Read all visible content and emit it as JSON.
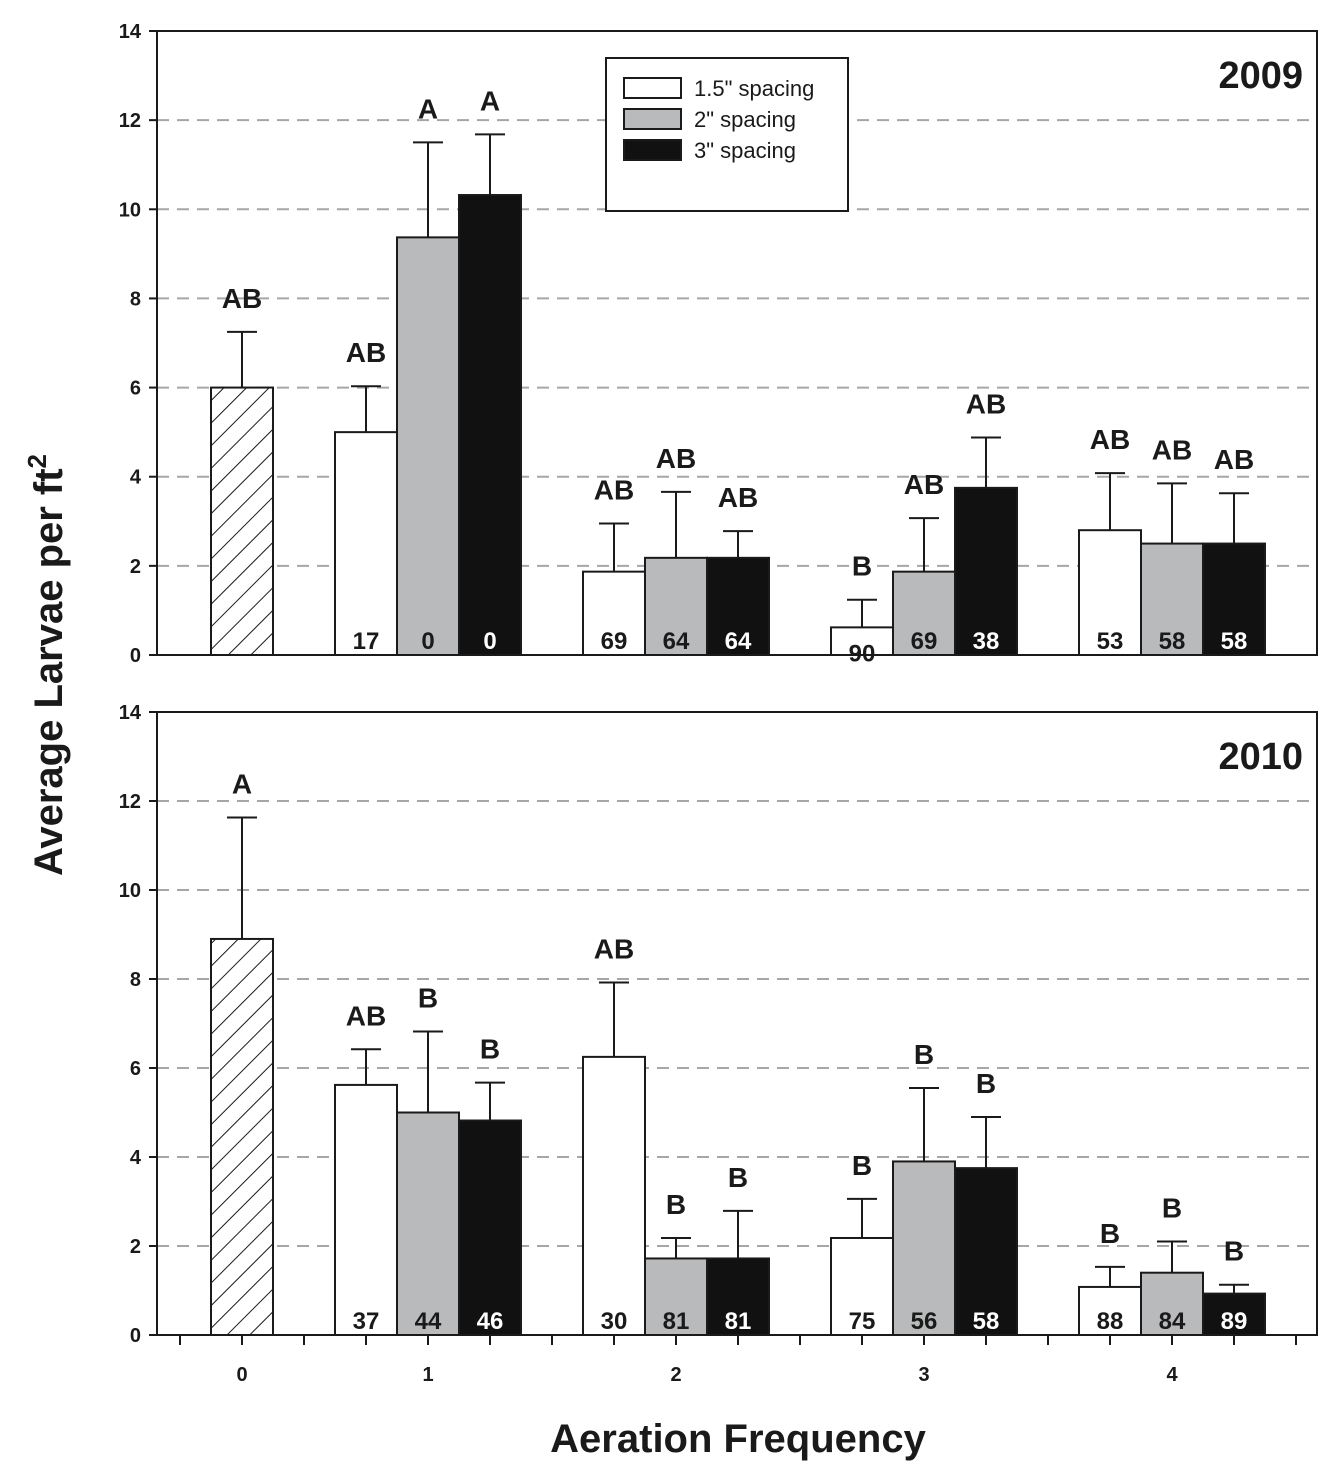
{
  "chart_data": {
    "type": "bar",
    "xlabel": "Aeration Frequency",
    "ylabel": "Average Larvae per ft",
    "ylabel_superscript": "2",
    "ylim": [
      0,
      14
    ],
    "yticks": [
      "0",
      "2",
      "4",
      "6",
      "8",
      "10",
      "12",
      "14"
    ],
    "categories": [
      "0",
      "1",
      "2",
      "3",
      "4"
    ],
    "grid": "horizontal dashed",
    "legend": {
      "placement": "top-center",
      "entries": [
        "1.5\" spacing",
        "2\" spacing",
        "3\" spacing"
      ]
    },
    "series_colors": {
      "control": "hatched",
      "s15": "#ffffff",
      "s2": "#b9babc",
      "s3": "#111111"
    },
    "panels": [
      {
        "title": "2009",
        "bars": [
          {
            "category": "0",
            "series": "control",
            "value": 6.0,
            "error": 1.25,
            "letter": "AB",
            "pct": ""
          },
          {
            "category": "1",
            "series": "s15",
            "value": 5.0,
            "error": 1.03,
            "letter": "AB",
            "pct": "17"
          },
          {
            "category": "1",
            "series": "s2",
            "value": 9.37,
            "error": 2.13,
            "letter": "A",
            "pct": "0"
          },
          {
            "category": "1",
            "series": "s3",
            "value": 10.32,
            "error": 1.36,
            "letter": "A",
            "pct": "0"
          },
          {
            "category": "2",
            "series": "s15",
            "value": 1.87,
            "error": 1.08,
            "letter": "AB",
            "pct": "69"
          },
          {
            "category": "2",
            "series": "s2",
            "value": 2.18,
            "error": 1.48,
            "letter": "AB",
            "pct": "64"
          },
          {
            "category": "2",
            "series": "s3",
            "value": 2.18,
            "error": 0.6,
            "letter": "AB",
            "pct": "64"
          },
          {
            "category": "3",
            "series": "s15",
            "value": 0.62,
            "error": 0.62,
            "letter": "B",
            "pct": "90"
          },
          {
            "category": "3",
            "series": "s2",
            "value": 1.87,
            "error": 1.2,
            "letter": "AB",
            "pct": "69"
          },
          {
            "category": "3",
            "series": "s3",
            "value": 3.75,
            "error": 1.13,
            "letter": "AB",
            "pct": "38"
          },
          {
            "category": "4",
            "series": "s15",
            "value": 2.8,
            "error": 1.28,
            "letter": "AB",
            "pct": "53"
          },
          {
            "category": "4",
            "series": "s2",
            "value": 2.5,
            "error": 1.35,
            "letter": "AB",
            "pct": "58"
          },
          {
            "category": "4",
            "series": "s3",
            "value": 2.5,
            "error": 1.13,
            "letter": "AB",
            "pct": "58"
          }
        ]
      },
      {
        "title": "2010",
        "bars": [
          {
            "category": "0",
            "series": "control",
            "value": 8.9,
            "error": 2.73,
            "letter": "A",
            "pct": ""
          },
          {
            "category": "1",
            "series": "s15",
            "value": 5.62,
            "error": 0.8,
            "letter": "AB",
            "pct": "37"
          },
          {
            "category": "1",
            "series": "s2",
            "value": 5.0,
            "error": 1.82,
            "letter": "B",
            "pct": "44"
          },
          {
            "category": "1",
            "series": "s3",
            "value": 4.82,
            "error": 0.85,
            "letter": "B",
            "pct": "46"
          },
          {
            "category": "2",
            "series": "s15",
            "value": 6.25,
            "error": 1.67,
            "letter": "AB",
            "pct": "30"
          },
          {
            "category": "2",
            "series": "s2",
            "value": 1.72,
            "error": 0.46,
            "letter": "B",
            "pct": "81"
          },
          {
            "category": "2",
            "series": "s3",
            "value": 1.72,
            "error": 1.07,
            "letter": "B",
            "pct": "81"
          },
          {
            "category": "3",
            "series": "s15",
            "value": 2.18,
            "error": 0.88,
            "letter": "B",
            "pct": "75"
          },
          {
            "category": "3",
            "series": "s2",
            "value": 3.9,
            "error": 1.65,
            "letter": "B",
            "pct": "56"
          },
          {
            "category": "3",
            "series": "s3",
            "value": 3.75,
            "error": 1.15,
            "letter": "B",
            "pct": "58"
          },
          {
            "category": "4",
            "series": "s15",
            "value": 1.08,
            "error": 0.45,
            "letter": "B",
            "pct": "88"
          },
          {
            "category": "4",
            "series": "s2",
            "value": 1.4,
            "error": 0.7,
            "letter": "B",
            "pct": "84"
          },
          {
            "category": "4",
            "series": "s3",
            "value": 0.93,
            "error": 0.2,
            "letter": "B",
            "pct": "89"
          }
        ]
      }
    ]
  }
}
